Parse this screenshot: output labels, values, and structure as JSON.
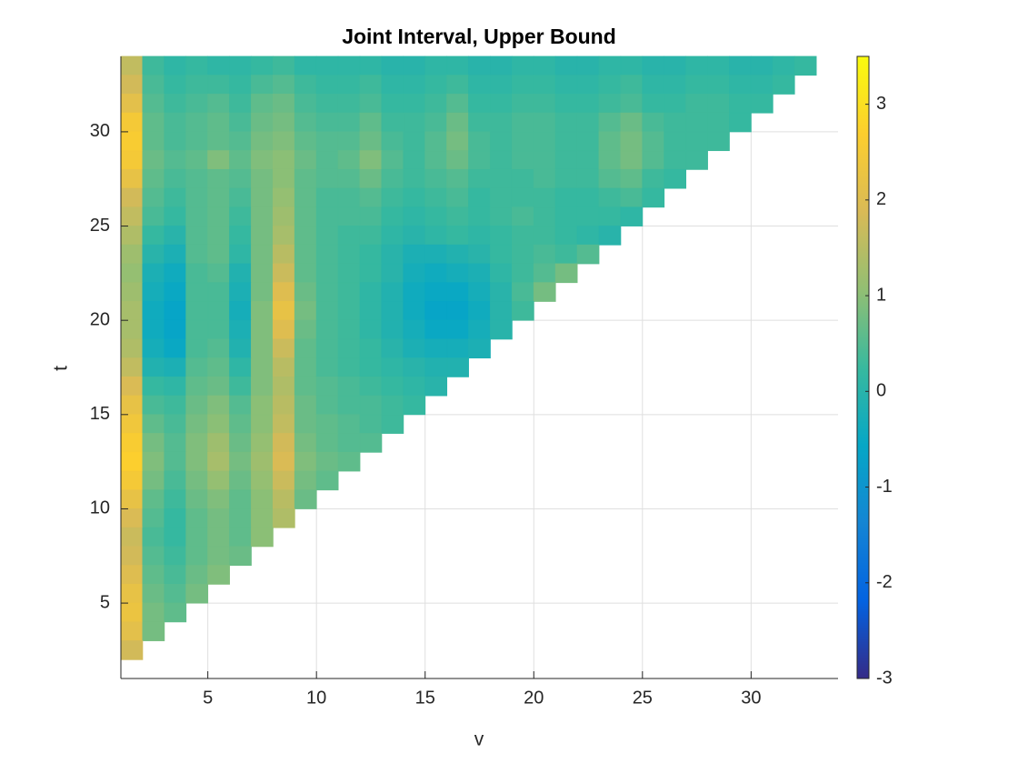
{
  "chart_data": {
    "type": "heatmap",
    "title": "Joint Interval, Upper Bound",
    "x_label": "v",
    "y_label": "t",
    "xlim": [
      1,
      34
    ],
    "ylim": [
      1,
      34
    ],
    "xticks": [
      5,
      10,
      15,
      20,
      25,
      30
    ],
    "yticks": [
      5,
      10,
      15,
      20,
      25,
      30
    ],
    "grid": true,
    "clim": [
      -3,
      3.5
    ],
    "cticks": [
      -3,
      -2,
      -1,
      0,
      1,
      2,
      3
    ],
    "colormap": [
      "#352a87",
      "#0363e1",
      "#1485d4",
      "#06a7c6",
      "#38b99e",
      "#92bf73",
      "#d9ba56",
      "#fcce2e",
      "#f9fb0e"
    ],
    "x": [
      1,
      2,
      3,
      4,
      5,
      6,
      7,
      8,
      9,
      10,
      11,
      12,
      13,
      14,
      15,
      16,
      17,
      18,
      19,
      20,
      21,
      22,
      23,
      24,
      25,
      26,
      27,
      28,
      29,
      30,
      31,
      32,
      33
    ],
    "y": [
      33,
      32,
      31,
      30,
      29,
      28,
      27,
      26,
      25,
      24,
      23,
      22,
      21,
      20,
      19,
      18,
      17,
      16,
      15,
      14,
      13,
      12,
      11,
      10,
      9,
      8,
      7,
      6,
      5,
      4,
      3,
      2
    ],
    "z": [
      [
        1.6,
        0.3,
        0.1,
        0.2,
        0.1,
        0.1,
        0.2,
        0.3,
        0.1,
        0.1,
        0.1,
        0.1,
        0.0,
        0.0,
        0.1,
        0.1,
        0.0,
        0.0,
        0.1,
        0.1,
        0.0,
        0.0,
        0.1,
        0.1,
        0.0,
        0.0,
        0.1,
        0.1,
        0.0,
        0.0,
        0.1,
        0.2,
        null
      ],
      [
        1.8,
        0.4,
        0.2,
        0.3,
        0.3,
        0.2,
        0.4,
        0.5,
        0.3,
        0.2,
        0.2,
        0.3,
        0.1,
        0.1,
        0.2,
        0.3,
        0.1,
        0.1,
        0.2,
        0.2,
        0.1,
        0.1,
        0.2,
        0.3,
        0.1,
        0.1,
        0.2,
        0.2,
        0.1,
        0.1,
        0.2,
        null,
        null
      ],
      [
        2.1,
        0.5,
        0.3,
        0.4,
        0.5,
        0.3,
        0.6,
        0.7,
        0.4,
        0.3,
        0.3,
        0.4,
        0.2,
        0.2,
        0.3,
        0.5,
        0.2,
        0.2,
        0.3,
        0.3,
        0.2,
        0.2,
        0.3,
        0.4,
        0.2,
        0.2,
        0.3,
        0.3,
        0.2,
        0.2,
        null,
        null,
        null
      ],
      [
        2.5,
        0.6,
        0.4,
        0.5,
        0.6,
        0.4,
        0.7,
        0.8,
        0.5,
        0.4,
        0.4,
        0.6,
        0.3,
        0.3,
        0.4,
        0.7,
        0.3,
        0.3,
        0.4,
        0.4,
        0.3,
        0.3,
        0.5,
        0.7,
        0.4,
        0.3,
        0.3,
        0.3,
        0.2,
        null,
        null,
        null,
        null
      ],
      [
        2.6,
        0.6,
        0.4,
        0.5,
        0.6,
        0.5,
        0.8,
        0.9,
        0.6,
        0.5,
        0.5,
        0.7,
        0.4,
        0.3,
        0.5,
        0.8,
        0.4,
        0.3,
        0.4,
        0.4,
        0.3,
        0.3,
        0.6,
        0.8,
        0.5,
        0.3,
        0.3,
        0.3,
        null,
        null,
        null,
        null,
        null
      ],
      [
        2.5,
        0.7,
        0.5,
        0.6,
        0.9,
        0.6,
        0.9,
        1.0,
        0.7,
        0.5,
        0.6,
        0.9,
        0.5,
        0.3,
        0.5,
        0.7,
        0.4,
        0.3,
        0.4,
        0.4,
        0.3,
        0.3,
        0.6,
        0.8,
        0.5,
        0.3,
        0.3,
        null,
        null,
        null,
        null,
        null,
        null
      ],
      [
        2.2,
        0.6,
        0.4,
        0.5,
        0.6,
        0.5,
        0.8,
        1.0,
        0.6,
        0.5,
        0.5,
        0.7,
        0.4,
        0.3,
        0.4,
        0.5,
        0.3,
        0.3,
        0.3,
        0.4,
        0.3,
        0.3,
        0.5,
        0.6,
        0.3,
        0.2,
        null,
        null,
        null,
        null,
        null,
        null,
        null
      ],
      [
        1.8,
        0.5,
        0.3,
        0.5,
        0.6,
        0.4,
        0.8,
        1.1,
        0.6,
        0.4,
        0.4,
        0.5,
        0.3,
        0.2,
        0.3,
        0.4,
        0.2,
        0.3,
        0.3,
        0.3,
        0.2,
        0.2,
        0.3,
        0.4,
        0.2,
        null,
        null,
        null,
        null,
        null,
        null,
        null,
        null
      ],
      [
        1.6,
        0.4,
        0.2,
        0.5,
        0.6,
        0.3,
        0.8,
        1.2,
        0.6,
        0.4,
        0.4,
        0.4,
        0.2,
        0.1,
        0.2,
        0.3,
        0.2,
        0.3,
        0.4,
        0.3,
        0.2,
        0.2,
        0.2,
        0.1,
        null,
        null,
        null,
        null,
        null,
        null,
        null,
        null,
        null
      ],
      [
        1.4,
        0.2,
        0.0,
        0.5,
        0.6,
        0.2,
        0.8,
        1.3,
        0.6,
        0.4,
        0.3,
        0.3,
        0.1,
        0.0,
        0.1,
        0.2,
        0.1,
        0.2,
        0.3,
        0.3,
        0.2,
        0.1,
        0.0,
        null,
        null,
        null,
        null,
        null,
        null,
        null,
        null,
        null,
        null
      ],
      [
        1.2,
        0.0,
        -0.2,
        0.5,
        0.6,
        0.1,
        0.8,
        1.5,
        0.6,
        0.4,
        0.3,
        0.2,
        0.0,
        -0.2,
        -0.2,
        -0.1,
        0.0,
        0.2,
        0.3,
        0.4,
        0.3,
        0.5,
        null,
        null,
        null,
        null,
        null,
        null,
        null,
        null,
        null,
        null,
        null
      ],
      [
        1.1,
        -0.2,
        -0.4,
        0.4,
        0.5,
        -0.1,
        0.8,
        1.7,
        0.6,
        0.4,
        0.3,
        0.2,
        0.0,
        -0.3,
        -0.4,
        -0.3,
        -0.2,
        0.1,
        0.3,
        0.5,
        0.8,
        null,
        null,
        null,
        null,
        null,
        null,
        null,
        null,
        null,
        null,
        null,
        null
      ],
      [
        1.2,
        -0.3,
        -0.5,
        0.4,
        0.4,
        -0.2,
        0.8,
        2.0,
        0.7,
        0.4,
        0.3,
        0.1,
        -0.1,
        -0.4,
        -0.5,
        -0.5,
        -0.3,
        0.0,
        0.4,
        0.8,
        null,
        null,
        null,
        null,
        null,
        null,
        null,
        null,
        null,
        null,
        null,
        null,
        null
      ],
      [
        1.3,
        -0.4,
        -0.6,
        0.4,
        0.4,
        -0.3,
        0.9,
        2.2,
        0.8,
        0.4,
        0.3,
        0.1,
        -0.1,
        -0.4,
        -0.6,
        -0.6,
        -0.4,
        0.0,
        0.3,
        null,
        null,
        null,
        null,
        null,
        null,
        null,
        null,
        null,
        null,
        null,
        null,
        null,
        null
      ],
      [
        1.3,
        -0.4,
        -0.6,
        0.4,
        0.4,
        -0.2,
        0.9,
        2.0,
        0.7,
        0.4,
        0.3,
        0.1,
        -0.1,
        -0.3,
        -0.5,
        -0.5,
        -0.3,
        0.0,
        null,
        null,
        null,
        null,
        null,
        null,
        null,
        null,
        null,
        null,
        null,
        null,
        null,
        null,
        null
      ],
      [
        1.4,
        -0.3,
        -0.5,
        0.4,
        0.5,
        -0.1,
        0.9,
        1.7,
        0.6,
        0.4,
        0.3,
        0.2,
        0.0,
        -0.2,
        -0.3,
        -0.3,
        -0.2,
        null,
        null,
        null,
        null,
        null,
        null,
        null,
        null,
        null,
        null,
        null,
        null,
        null,
        null,
        null,
        null
      ],
      [
        1.6,
        -0.1,
        -0.2,
        0.5,
        0.6,
        0.1,
        0.9,
        1.5,
        0.6,
        0.4,
        0.3,
        0.2,
        0.1,
        0.0,
        -0.1,
        -0.1,
        null,
        null,
        null,
        null,
        null,
        null,
        null,
        null,
        null,
        null,
        null,
        null,
        null,
        null,
        null,
        null,
        null
      ],
      [
        1.9,
        0.2,
        0.1,
        0.6,
        0.7,
        0.3,
        0.9,
        1.4,
        0.6,
        0.5,
        0.4,
        0.3,
        0.2,
        0.1,
        0.0,
        null,
        null,
        null,
        null,
        null,
        null,
        null,
        null,
        null,
        null,
        null,
        null,
        null,
        null,
        null,
        null,
        null,
        null
      ],
      [
        2.2,
        0.4,
        0.3,
        0.7,
        0.9,
        0.5,
        1.0,
        1.5,
        0.7,
        0.5,
        0.4,
        0.4,
        0.3,
        0.2,
        null,
        null,
        null,
        null,
        null,
        null,
        null,
        null,
        null,
        null,
        null,
        null,
        null,
        null,
        null,
        null,
        null,
        null,
        null
      ],
      [
        2.4,
        0.6,
        0.4,
        0.8,
        1.0,
        0.6,
        1.0,
        1.6,
        0.7,
        0.6,
        0.5,
        0.4,
        0.3,
        null,
        null,
        null,
        null,
        null,
        null,
        null,
        null,
        null,
        null,
        null,
        null,
        null,
        null,
        null,
        null,
        null,
        null,
        null,
        null
      ],
      [
        2.6,
        0.8,
        0.5,
        0.9,
        1.2,
        0.7,
        1.1,
        1.8,
        0.8,
        0.6,
        0.5,
        0.5,
        null,
        null,
        null,
        null,
        null,
        null,
        null,
        null,
        null,
        null,
        null,
        null,
        null,
        null,
        null,
        null,
        null,
        null,
        null,
        null,
        null
      ],
      [
        2.7,
        0.9,
        0.5,
        0.9,
        1.3,
        0.8,
        1.2,
        1.9,
        0.9,
        0.7,
        0.6,
        null,
        null,
        null,
        null,
        null,
        null,
        null,
        null,
        null,
        null,
        null,
        null,
        null,
        null,
        null,
        null,
        null,
        null,
        null,
        null,
        null,
        null
      ],
      [
        2.5,
        0.8,
        0.4,
        0.8,
        1.1,
        0.7,
        1.1,
        1.7,
        0.8,
        0.6,
        null,
        null,
        null,
        null,
        null,
        null,
        null,
        null,
        null,
        null,
        null,
        null,
        null,
        null,
        null,
        null,
        null,
        null,
        null,
        null,
        null,
        null,
        null
      ],
      [
        2.2,
        0.6,
        0.3,
        0.7,
        0.9,
        0.6,
        1.0,
        1.5,
        0.7,
        null,
        null,
        null,
        null,
        null,
        null,
        null,
        null,
        null,
        null,
        null,
        null,
        null,
        null,
        null,
        null,
        null,
        null,
        null,
        null,
        null,
        null,
        null,
        null
      ],
      [
        1.9,
        0.5,
        0.2,
        0.6,
        0.8,
        0.6,
        1.0,
        1.4,
        null,
        null,
        null,
        null,
        null,
        null,
        null,
        null,
        null,
        null,
        null,
        null,
        null,
        null,
        null,
        null,
        null,
        null,
        null,
        null,
        null,
        null,
        null,
        null,
        null
      ],
      [
        1.7,
        0.4,
        0.2,
        0.6,
        0.8,
        0.6,
        1.0,
        null,
        null,
        null,
        null,
        null,
        null,
        null,
        null,
        null,
        null,
        null,
        null,
        null,
        null,
        null,
        null,
        null,
        null,
        null,
        null,
        null,
        null,
        null,
        null,
        null,
        null
      ],
      [
        1.8,
        0.5,
        0.3,
        0.6,
        0.8,
        0.7,
        null,
        null,
        null,
        null,
        null,
        null,
        null,
        null,
        null,
        null,
        null,
        null,
        null,
        null,
        null,
        null,
        null,
        null,
        null,
        null,
        null,
        null,
        null,
        null,
        null,
        null,
        null
      ],
      [
        2.0,
        0.6,
        0.4,
        0.7,
        0.9,
        null,
        null,
        null,
        null,
        null,
        null,
        null,
        null,
        null,
        null,
        null,
        null,
        null,
        null,
        null,
        null,
        null,
        null,
        null,
        null,
        null,
        null,
        null,
        null,
        null,
        null,
        null,
        null
      ],
      [
        2.2,
        0.7,
        0.5,
        0.8,
        null,
        null,
        null,
        null,
        null,
        null,
        null,
        null,
        null,
        null,
        null,
        null,
        null,
        null,
        null,
        null,
        null,
        null,
        null,
        null,
        null,
        null,
        null,
        null,
        null,
        null,
        null,
        null,
        null
      ],
      [
        2.3,
        0.8,
        0.6,
        null,
        null,
        null,
        null,
        null,
        null,
        null,
        null,
        null,
        null,
        null,
        null,
        null,
        null,
        null,
        null,
        null,
        null,
        null,
        null,
        null,
        null,
        null,
        null,
        null,
        null,
        null,
        null,
        null,
        null
      ],
      [
        2.1,
        0.8,
        null,
        null,
        null,
        null,
        null,
        null,
        null,
        null,
        null,
        null,
        null,
        null,
        null,
        null,
        null,
        null,
        null,
        null,
        null,
        null,
        null,
        null,
        null,
        null,
        null,
        null,
        null,
        null,
        null,
        null,
        null
      ],
      [
        1.8,
        null,
        null,
        null,
        null,
        null,
        null,
        null,
        null,
        null,
        null,
        null,
        null,
        null,
        null,
        null,
        null,
        null,
        null,
        null,
        null,
        null,
        null,
        null,
        null,
        null,
        null,
        null,
        null,
        null,
        null,
        null,
        null
      ]
    ]
  }
}
